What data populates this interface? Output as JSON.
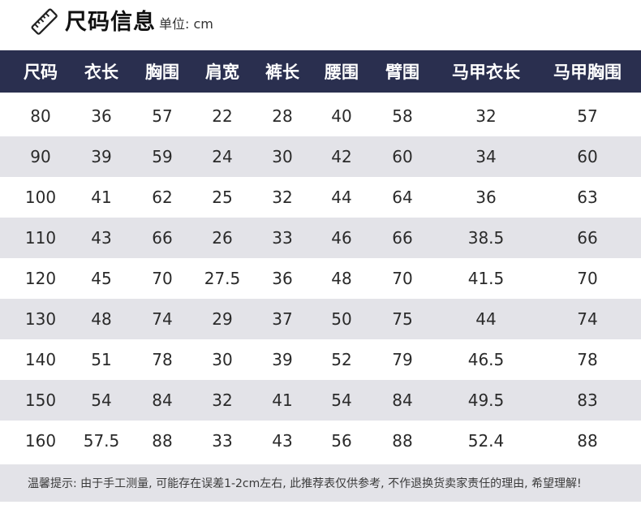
{
  "header": {
    "title": "尺码信息",
    "unit": "单位: cm",
    "icon": "ruler-icon"
  },
  "colors": {
    "header_bg": "#2a2f4f",
    "stripe_bg": "#e3e3e8",
    "header_text": "#ffffff"
  },
  "table": {
    "columns": [
      "尺码",
      "衣长",
      "胸围",
      "肩宽",
      "裤长",
      "腰围",
      "臂围",
      "马甲衣长",
      "马甲胸围"
    ],
    "rows": [
      [
        "80",
        "36",
        "57",
        "22",
        "28",
        "40",
        "58",
        "32",
        "57"
      ],
      [
        "90",
        "39",
        "59",
        "24",
        "30",
        "42",
        "60",
        "34",
        "60"
      ],
      [
        "100",
        "41",
        "62",
        "25",
        "32",
        "44",
        "64",
        "36",
        "63"
      ],
      [
        "110",
        "43",
        "66",
        "26",
        "33",
        "46",
        "66",
        "38.5",
        "66"
      ],
      [
        "120",
        "45",
        "70",
        "27.5",
        "36",
        "48",
        "70",
        "41.5",
        "70"
      ],
      [
        "130",
        "48",
        "74",
        "29",
        "37",
        "50",
        "75",
        "44",
        "74"
      ],
      [
        "140",
        "51",
        "78",
        "30",
        "39",
        "52",
        "79",
        "46.5",
        "78"
      ],
      [
        "150",
        "54",
        "84",
        "32",
        "41",
        "54",
        "84",
        "49.5",
        "83"
      ],
      [
        "160",
        "57.5",
        "88",
        "33",
        "43",
        "56",
        "88",
        "52.4",
        "88"
      ]
    ]
  },
  "footer": {
    "note": "温馨提示: 由于手工测量, 可能存在误差1-2cm左右, 此推荐表仅供参考, 不作退换货卖家责任的理由, 希望理解!"
  }
}
